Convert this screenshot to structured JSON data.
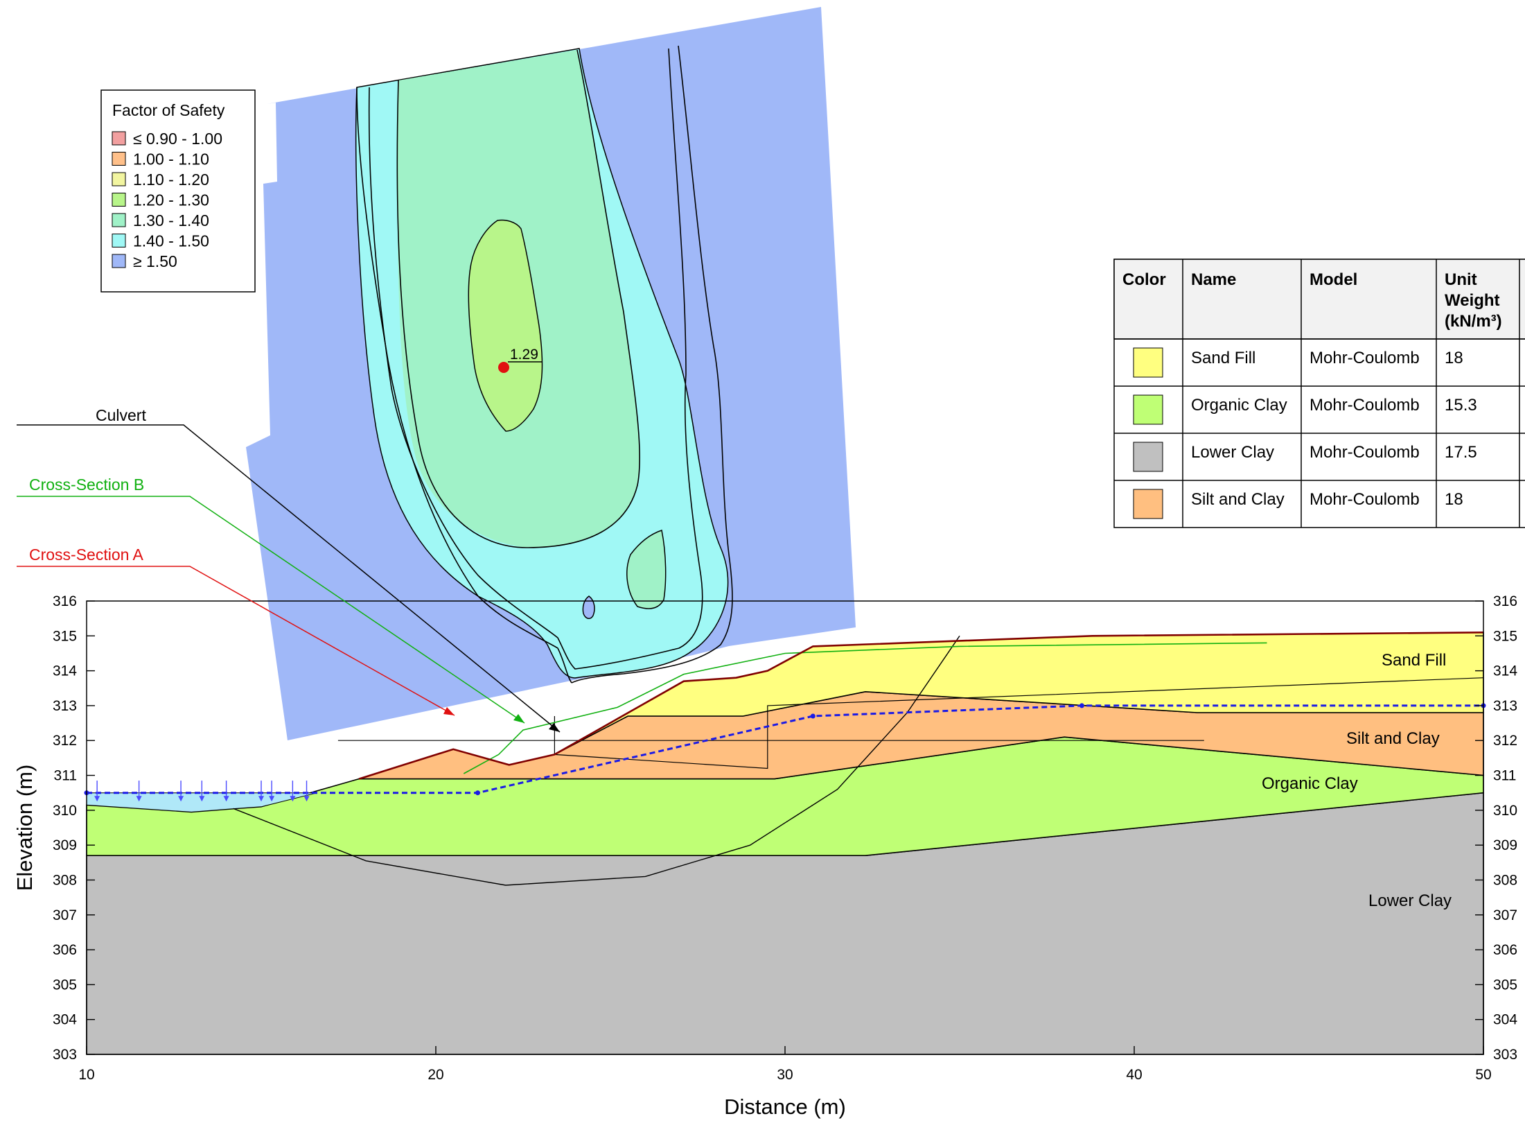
{
  "fos_legend": {
    "title": "Factor of Safety",
    "items": [
      {
        "label": "≤ 0.90 - 1.00",
        "color": "#f2a0a0"
      },
      {
        "label": "1.00 - 1.10",
        "color": "#ffc08a"
      },
      {
        "label": "1.10 - 1.20",
        "color": "#f2f5a0"
      },
      {
        "label": "1.20 - 1.30",
        "color": "#b8f58a"
      },
      {
        "label": "1.30 - 1.40",
        "color": "#a0f2c8"
      },
      {
        "label": "1.40 - 1.50",
        "color": "#a0f8f5"
      },
      {
        "label": "≥ 1.50",
        "color": "#a0b8f8"
      }
    ]
  },
  "critical_fos": "1.29",
  "annotations": {
    "culvert": "Culvert",
    "cross_section_b": "Cross-Section B",
    "cross_section_a": "Cross-Section A"
  },
  "materials_table": {
    "headers": [
      "Color",
      "Name",
      "Model",
      "Unit Weight (kN/m³)"
    ],
    "rows": [
      {
        "color": "#ffff80",
        "name": "Sand Fill",
        "model": "Mohr-Coulomb",
        "unit_weight": "18"
      },
      {
        "color": "#bfff75",
        "name": "Organic Clay",
        "model": "Mohr-Coulomb",
        "unit_weight": "15.3"
      },
      {
        "color": "#c0c0c0",
        "name": "Lower Clay",
        "model": "Mohr-Coulomb",
        "unit_weight": "17.5"
      },
      {
        "color": "#ffbf80",
        "name": "Silt and Clay",
        "model": "Mohr-Coulomb",
        "unit_weight": "18"
      }
    ]
  },
  "region_labels": {
    "sand_fill": "Sand Fill",
    "silt_and_clay": "Silt and Clay",
    "organic_clay": "Organic Clay",
    "lower_clay": "Lower Clay"
  },
  "colors": {
    "sand_fill": "#ffff80",
    "silt_and_clay": "#ffbf80",
    "organic_clay": "#bfff75",
    "lower_clay": "#c0c0c0",
    "ponded_water": "#b0e8f8",
    "piezometric_line": "#1a1ae6",
    "cross_section_a": "#e01010",
    "cross_section_b": "#10b010",
    "ground_surface": "#800000"
  },
  "chart_data": {
    "type": "cross-section",
    "xlabel": "Distance (m)",
    "ylabel": "Elevation (m)",
    "xlim": [
      10,
      50
    ],
    "ylim": [
      303,
      316
    ],
    "x_ticks": [
      "10",
      "20",
      "30",
      "40",
      "50"
    ],
    "y_ticks": [
      "303",
      "304",
      "305",
      "306",
      "307",
      "308",
      "309",
      "310",
      "311",
      "312",
      "313",
      "314",
      "315",
      "316"
    ],
    "layers": [
      {
        "key": "lower_clay",
        "points": [
          [
            10,
            303
          ],
          [
            10,
            308.7
          ],
          [
            32.3,
            308.7
          ],
          [
            50,
            310.5
          ],
          [
            50,
            303
          ]
        ]
      },
      {
        "key": "organic_clay",
        "points": [
          [
            10,
            308.7
          ],
          [
            10,
            310.15
          ],
          [
            13,
            309.95
          ],
          [
            14.3,
            310.05
          ],
          [
            15,
            310.1
          ],
          [
            17.8,
            310.9
          ],
          [
            29.7,
            310.9
          ],
          [
            38,
            312.1
          ],
          [
            50,
            311
          ],
          [
            50,
            310.5
          ],
          [
            32.3,
            308.7
          ]
        ]
      },
      {
        "key": "silt_and_clay",
        "points": [
          [
            17.8,
            310.9
          ],
          [
            20.5,
            311.75
          ],
          [
            22.1,
            311.3
          ],
          [
            23.4,
            311.6
          ],
          [
            25.5,
            312.7
          ],
          [
            28.8,
            312.7
          ],
          [
            32.3,
            313.4
          ],
          [
            41.8,
            312.8
          ],
          [
            50,
            312.8
          ],
          [
            50,
            311
          ],
          [
            38,
            312.1
          ],
          [
            29.7,
            310.9
          ]
        ]
      },
      {
        "key": "sand_fill",
        "points": [
          [
            23.4,
            311.6
          ],
          [
            27.1,
            313.7
          ],
          [
            28.6,
            313.8
          ],
          [
            29.5,
            314.0
          ],
          [
            30.8,
            314.7
          ],
          [
            38.8,
            315.0
          ],
          [
            50,
            315.1
          ],
          [
            50,
            312.8
          ],
          [
            41.8,
            312.8
          ],
          [
            32.3,
            313.4
          ],
          [
            28.8,
            312.7
          ],
          [
            25.5,
            312.7
          ]
        ]
      }
    ],
    "ground_surface": [
      [
        17.8,
        310.9
      ],
      [
        20.5,
        311.75
      ],
      [
        22.1,
        311.3
      ],
      [
        23.4,
        311.6
      ],
      [
        27.1,
        313.7
      ],
      [
        28.6,
        313.8
      ],
      [
        29.5,
        314.0
      ],
      [
        30.8,
        314.7
      ],
      [
        38.8,
        315.0
      ],
      [
        50,
        315.1
      ]
    ],
    "ponded_water": {
      "elevation": 310.5,
      "points": [
        [
          10,
          310.5
        ],
        [
          16.6,
          310.5
        ],
        [
          15,
          310.1
        ],
        [
          14.3,
          310.05
        ],
        [
          13,
          309.95
        ],
        [
          10,
          310.15
        ]
      ]
    },
    "piezometric_line": [
      [
        10,
        310.5
      ],
      [
        21.2,
        310.5
      ],
      [
        30.8,
        312.7
      ],
      [
        38.5,
        313.0
      ],
      [
        50,
        313.0
      ]
    ],
    "culvert_outline": [
      [
        23.4,
        312.7
      ],
      [
        23.4,
        311.6
      ],
      [
        29.5,
        311.2
      ],
      [
        29.5,
        313.0
      ],
      [
        50,
        313.8
      ]
    ],
    "slip_surface": [
      [
        14.2,
        310.05
      ],
      [
        18,
        308.55
      ],
      [
        22,
        307.85
      ],
      [
        26,
        308.1
      ],
      [
        29,
        309.0
      ],
      [
        31.5,
        310.6
      ],
      [
        33.5,
        312.8
      ],
      [
        35,
        315.0
      ]
    ],
    "reference_line": [
      [
        17.2,
        312.0
      ],
      [
        42,
        312.0
      ]
    ],
    "cross_section_b_line": [
      [
        20.8,
        311.05
      ],
      [
        21.8,
        311.6
      ],
      [
        22.5,
        312.3
      ],
      [
        25.2,
        312.95
      ],
      [
        27.1,
        313.9
      ],
      [
        30,
        314.5
      ],
      [
        35,
        314.7
      ],
      [
        43.8,
        314.8
      ]
    ],
    "fos_grid_critical_fos": 1.29
  }
}
